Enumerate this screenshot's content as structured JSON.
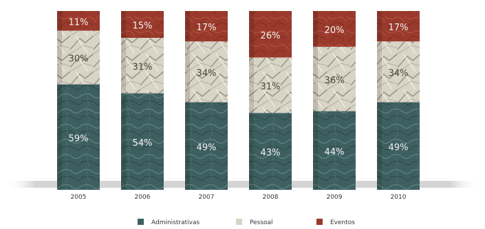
{
  "chart_data": {
    "type": "bar",
    "stacked": true,
    "categories": [
      "2005",
      "2006",
      "2007",
      "2008",
      "2009",
      "2010"
    ],
    "series": [
      {
        "name": "Administrativas",
        "values": [
          59,
          54,
          49,
          43,
          44,
          49
        ],
        "labels": [
          "59%",
          "54%",
          "49%",
          "43%",
          "44%",
          "49%"
        ]
      },
      {
        "name": "Pessoal",
        "values": [
          30,
          31,
          34,
          31,
          36,
          34
        ],
        "labels": [
          "30%",
          "31%",
          "34%",
          "31%",
          "36%",
          "34%"
        ]
      },
      {
        "name": "Eventos",
        "values": [
          11,
          15,
          17,
          26,
          20,
          17
        ],
        "labels": [
          "11%",
          "15%",
          "17%",
          "26%",
          "20%",
          "17%"
        ]
      }
    ],
    "colors": {
      "Administrativas": "#3e5f60",
      "Pessoal": "#d8d4c6",
      "Eventos": "#9a3a2c"
    },
    "legend_position": "bottom",
    "grid": false
  }
}
